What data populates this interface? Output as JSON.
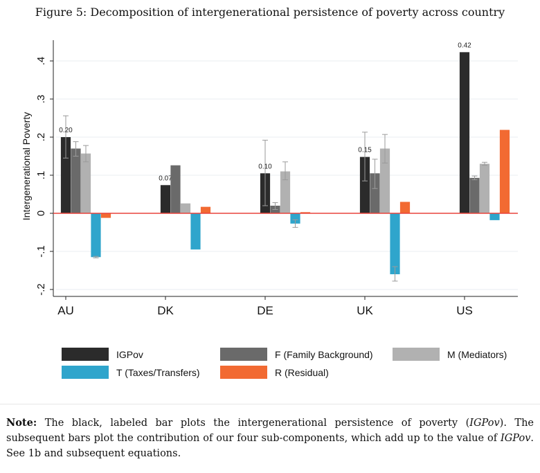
{
  "figure": {
    "title": "Figure 5: Decomposition of intergenerational persistence of poverty across country"
  },
  "chart_data": {
    "type": "bar",
    "ylabel": "Intergenerational Poverty",
    "ylim": [
      -0.22,
      0.44
    ],
    "yticks": [
      -0.2,
      -0.1,
      0,
      0.1,
      0.2,
      0.3,
      0.4
    ],
    "ytick_labels": [
      "-.2",
      "-.1",
      "0",
      ".1",
      ".2",
      ".3",
      ".4"
    ],
    "categories": [
      "AU",
      "DK",
      "DE",
      "UK",
      "US"
    ],
    "grid": true,
    "zero_line_color": "#e8423b",
    "series": [
      {
        "name": "IGPov",
        "color": "#2b2b2b",
        "values": [
          0.2,
          0.074,
          0.105,
          0.148,
          0.423
        ],
        "labels": [
          "0.20",
          "0.07",
          "0.10",
          "0.15",
          "0.42"
        ],
        "err": [
          [
            0.145,
            0.256
          ],
          null,
          [
            0.02,
            0.192
          ],
          [
            0.085,
            0.213
          ],
          null
        ]
      },
      {
        "name": "F (Family Background)",
        "color": "#6a6a6a",
        "values": [
          0.17,
          0.126,
          0.02,
          0.105,
          0.093
        ],
        "err": [
          [
            0.15,
            0.188
          ],
          null,
          [
            0.01,
            0.028
          ],
          [
            0.065,
            0.142
          ],
          [
            0.088,
            0.098
          ]
        ]
      },
      {
        "name": "M (Mediators)",
        "color": "#b1b1b1",
        "values": [
          0.157,
          0.026,
          0.11,
          0.17,
          0.13
        ],
        "err": [
          [
            0.135,
            0.178
          ],
          null,
          [
            0.088,
            0.135
          ],
          [
            0.132,
            0.207
          ],
          [
            0.126,
            0.134
          ]
        ]
      },
      {
        "name": "T (Taxes/Transfers)",
        "color": "#2fa5cc",
        "values": [
          -0.115,
          -0.095,
          -0.027,
          -0.16,
          -0.018
        ],
        "err": [
          [
            -0.117,
            -0.113
          ],
          null,
          [
            -0.037,
            -0.017
          ],
          [
            -0.178,
            -0.14
          ],
          null
        ]
      },
      {
        "name": "R (Residual)",
        "color": "#f26a32",
        "values": [
          -0.012,
          0.017,
          0.003,
          0.03,
          0.219
        ],
        "err": [
          null,
          null,
          null,
          null,
          null
        ]
      }
    ],
    "legend_position": "bottom"
  },
  "note": {
    "label": "Note:",
    "part1": " The black, labeled bar plots the intergenerational persistence of poverty (",
    "igpov": "IGPov",
    "part2": "). The subsequent bars plot the contribution of our four sub-components, which add up to the value of ",
    "part3": ". See 1b and subsequent equations."
  }
}
